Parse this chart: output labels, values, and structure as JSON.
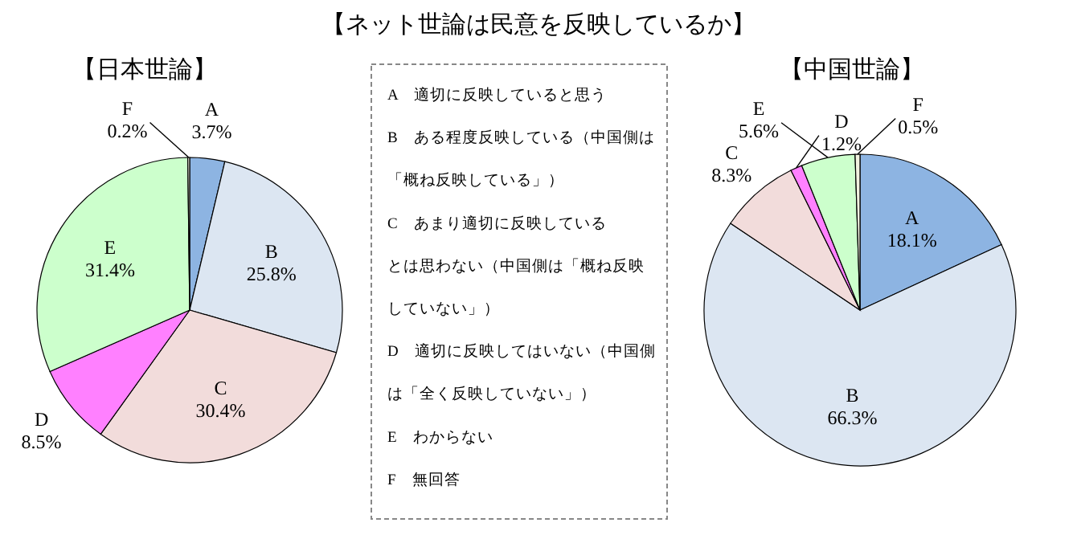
{
  "chart_data": [
    {
      "type": "pie",
      "title": "【日本世論】",
      "categories": [
        "A",
        "B",
        "C",
        "D",
        "E",
        "F"
      ],
      "values": [
        3.7,
        25.8,
        30.4,
        8.5,
        31.4,
        0.2
      ],
      "value_labels": [
        "3.7%",
        "25.8%",
        "30.4%",
        "8.5%",
        "31.4%",
        "0.2%"
      ],
      "colors": [
        "#8db4e2",
        "#dce6f2",
        "#f2dcdb",
        "#ff80ff",
        "#ccffcc",
        "#f2f2e0"
      ]
    },
    {
      "type": "other",
      "title": "【ネット世論は民意を反映しているか】",
      "annotations": [
        "A　適切に反映していると思う",
        "B　ある程度反映している（中国側は",
        "「概ね反映している」）",
        "C　あまり適切に反映している",
        "とは思わない（中国側は「概ね反映",
        "していない」）",
        "D　適切に反映してはいない（中国側",
        "は「全く反映していない」）",
        "E　わからない",
        "F　無回答"
      ]
    },
    {
      "type": "pie",
      "title": "【中国世論】",
      "categories": [
        "A",
        "B",
        "C",
        "D",
        "E",
        "F"
      ],
      "values": [
        18.1,
        66.3,
        8.3,
        1.2,
        5.6,
        0.5
      ],
      "value_labels": [
        "18.1%",
        "66.3%",
        "8.3%",
        "1.2%",
        "5.6%",
        "0.5%"
      ],
      "colors": [
        "#8db4e2",
        "#dce6f2",
        "#f2dcdb",
        "#ff80ff",
        "#ccffcc",
        "#f2f2e0"
      ]
    }
  ]
}
